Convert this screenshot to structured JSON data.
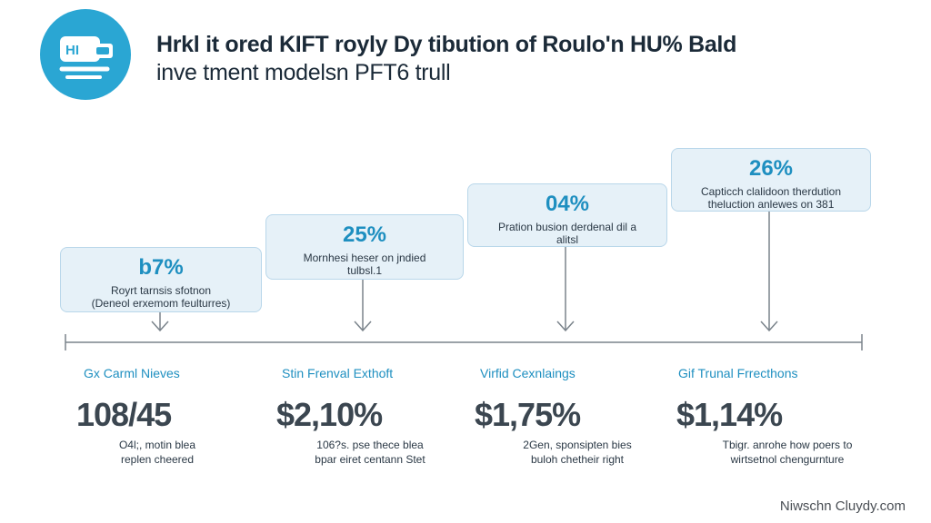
{
  "header": {
    "logo_icon": "hi-badge-icon",
    "title_line1": "Hrkl it ored KIFT royly Dy tibution of Roulo'n HU% Bald",
    "title_line2": "inve tment modelsn PFT6 trull"
  },
  "cards": [
    {
      "pct": "b7%",
      "desc_line1": "Royrt tarnsis sfotnon",
      "desc_line2": "(Deneol erxemom feulturres)"
    },
    {
      "pct": "25%",
      "desc_line1": "Mornhesi heser on jndied",
      "desc_line2": "tulbsl.1"
    },
    {
      "pct": "04%",
      "desc_line1": "Pration busion derdenal dil a",
      "desc_line2": "alitsl"
    },
    {
      "pct": "26%",
      "desc_line1": "Capticch clalidoon therdution",
      "desc_line2": "theluction anlewes on 381"
    }
  ],
  "columns": [
    {
      "heading": "Gx Carml Nieves",
      "value": "108/45",
      "note_line1": "O4l;, motin blea",
      "note_line2": "replen cheered"
    },
    {
      "heading": "Stin Frenval Exthoft",
      "value": "$2,10%",
      "note_line1": "106?s. pse thece blea",
      "note_line2": "bpar eiret centann Stet"
    },
    {
      "heading": "Virfid Cexnlaings",
      "value": "$1,75%",
      "note_line1": "2Gen, sponsipten bies",
      "note_line2": "buloh chetheir right"
    },
    {
      "heading": "Gif Trunal Frrecthons",
      "value": "$1,14%",
      "note_line1": "Tbigr. anrohe how poers to",
      "note_line2": "wirtsetnol chengurnture"
    }
  ],
  "footer": {
    "text": "Niwschn Cluydy.com"
  },
  "colors": {
    "accent": "#1e8fc0",
    "logo_bg": "#2aa6d3",
    "card_bg": "#e6f1f8",
    "card_border": "#b9d7ea"
  }
}
